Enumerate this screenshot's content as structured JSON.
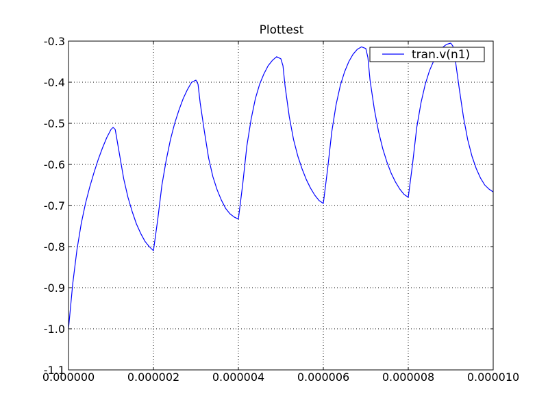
{
  "chart_data": {
    "type": "line",
    "title": "Plottest",
    "xlabel": "",
    "ylabel": "",
    "xlim": [
      0,
      1e-05
    ],
    "ylim": [
      -1.1,
      -0.3
    ],
    "x_ticks": [
      0,
      2e-06,
      4e-06,
      6e-06,
      8e-06,
      1e-05
    ],
    "x_tick_labels": [
      "0.000000",
      "0.000002",
      "0.000004",
      "0.000006",
      "0.000008",
      "0.000010"
    ],
    "y_ticks": [
      -1.1,
      -1.0,
      -0.9,
      -0.8,
      -0.7,
      -0.6,
      -0.5,
      -0.4,
      -0.3
    ],
    "y_tick_labels": [
      "-1.1",
      "-1.0",
      "-0.9",
      "-0.8",
      "-0.7",
      "-0.6",
      "-0.5",
      "-0.4",
      "-0.3"
    ],
    "grid": true,
    "legend_position": "top-right",
    "series": [
      {
        "name": "tran.v(n1)",
        "color": "#0000ff",
        "x": [
          0,
          1e-07,
          2e-07,
          3e-07,
          4e-07,
          5e-07,
          6e-07,
          7e-07,
          8e-07,
          9e-07,
          1e-06,
          1.05e-06,
          1.1e-06,
          1.2e-06,
          1.3e-06,
          1.4e-06,
          1.5e-06,
          1.6e-06,
          1.7e-06,
          1.8e-06,
          1.9e-06,
          2e-06,
          2.1e-06,
          2.2e-06,
          2.3e-06,
          2.4e-06,
          2.5e-06,
          2.6e-06,
          2.7e-06,
          2.8e-06,
          2.9e-06,
          3e-06,
          3.05e-06,
          3.1e-06,
          3.2e-06,
          3.3e-06,
          3.4e-06,
          3.5e-06,
          3.6e-06,
          3.7e-06,
          3.8e-06,
          3.9e-06,
          4e-06,
          4.1e-06,
          4.2e-06,
          4.3e-06,
          4.4e-06,
          4.5e-06,
          4.6e-06,
          4.7e-06,
          4.8e-06,
          4.9e-06,
          5e-06,
          5.05e-06,
          5.1e-06,
          5.2e-06,
          5.3e-06,
          5.4e-06,
          5.5e-06,
          5.6e-06,
          5.7e-06,
          5.8e-06,
          5.9e-06,
          6e-06,
          6.1e-06,
          6.2e-06,
          6.3e-06,
          6.4e-06,
          6.5e-06,
          6.6e-06,
          6.7e-06,
          6.8e-06,
          6.9e-06,
          7e-06,
          7.05e-06,
          7.1e-06,
          7.2e-06,
          7.3e-06,
          7.4e-06,
          7.5e-06,
          7.6e-06,
          7.7e-06,
          7.8e-06,
          7.9e-06,
          8e-06,
          8.1e-06,
          8.2e-06,
          8.3e-06,
          8.4e-06,
          8.5e-06,
          8.6e-06,
          8.7e-06,
          8.8e-06,
          8.9e-06,
          9e-06,
          9.05e-06,
          9.1e-06,
          9.2e-06,
          9.3e-06,
          9.4e-06,
          9.5e-06,
          9.6e-06,
          9.7e-06,
          9.8e-06,
          9.9e-06,
          1e-05
        ],
        "y": [
          -1.0,
          -0.89,
          -0.807,
          -0.744,
          -0.695,
          -0.655,
          -0.62,
          -0.588,
          -0.56,
          -0.535,
          -0.515,
          -0.51,
          -0.515,
          -0.575,
          -0.635,
          -0.68,
          -0.715,
          -0.745,
          -0.768,
          -0.787,
          -0.8,
          -0.81,
          -0.735,
          -0.65,
          -0.59,
          -0.54,
          -0.5,
          -0.468,
          -0.44,
          -0.418,
          -0.4,
          -0.395,
          -0.405,
          -0.45,
          -0.52,
          -0.585,
          -0.63,
          -0.662,
          -0.687,
          -0.707,
          -0.72,
          -0.728,
          -0.733,
          -0.65,
          -0.555,
          -0.49,
          -0.44,
          -0.405,
          -0.38,
          -0.36,
          -0.347,
          -0.338,
          -0.343,
          -0.36,
          -0.41,
          -0.485,
          -0.54,
          -0.58,
          -0.611,
          -0.637,
          -0.658,
          -0.675,
          -0.688,
          -0.695,
          -0.612,
          -0.52,
          -0.455,
          -0.408,
          -0.375,
          -0.35,
          -0.332,
          -0.32,
          -0.314,
          -0.318,
          -0.34,
          -0.395,
          -0.465,
          -0.52,
          -0.562,
          -0.595,
          -0.622,
          -0.643,
          -0.66,
          -0.673,
          -0.68,
          -0.6,
          -0.51,
          -0.45,
          -0.405,
          -0.372,
          -0.348,
          -0.33,
          -0.316,
          -0.308,
          -0.305,
          -0.312,
          -0.34,
          -0.415,
          -0.485,
          -0.54,
          -0.58,
          -0.61,
          -0.633,
          -0.65,
          -0.66,
          -0.667
        ]
      }
    ]
  }
}
